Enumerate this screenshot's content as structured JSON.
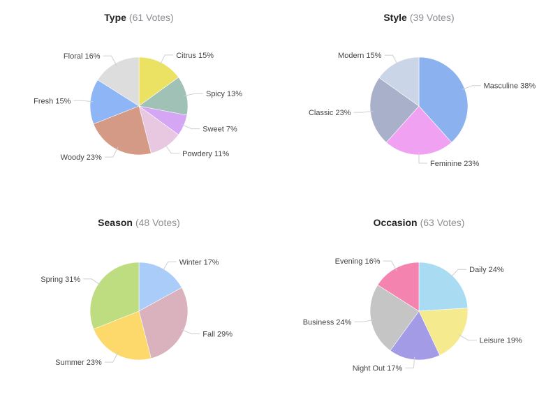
{
  "chart_data": [
    {
      "type": "pie",
      "title": "Type",
      "votes_label": "(61 Votes)",
      "slices": [
        {
          "label": "Citrus",
          "pct_label": "15%",
          "value": 15,
          "color": "#ebe263"
        },
        {
          "label": "Spicy",
          "pct_label": "13%",
          "value": 13,
          "color": "#9fc1b6"
        },
        {
          "label": "Sweet",
          "pct_label": "7%",
          "value": 7,
          "color": "#d4a6f4"
        },
        {
          "label": "Powdery",
          "pct_label": "11%",
          "value": 11,
          "color": "#e8c8e0"
        },
        {
          "label": "Woody",
          "pct_label": "23%",
          "value": 23,
          "color": "#d59a85"
        },
        {
          "label": "Fresh",
          "pct_label": "15%",
          "value": 15,
          "color": "#8eb6f6"
        },
        {
          "label": "Floral",
          "pct_label": "16%",
          "value": 16,
          "color": "#dddddd"
        }
      ]
    },
    {
      "type": "pie",
      "title": "Style",
      "votes_label": "(39 Votes)",
      "slices": [
        {
          "label": "Masculine",
          "pct_label": "38%",
          "value": 38,
          "color": "#8cb1ef"
        },
        {
          "label": "Feminine",
          "pct_label": "23%",
          "value": 23,
          "color": "#f1a1f1"
        },
        {
          "label": "Classic",
          "pct_label": "23%",
          "value": 23,
          "color": "#a9b0c9"
        },
        {
          "label": "Modern",
          "pct_label": "15%",
          "value": 15,
          "color": "#cbd5e8"
        }
      ]
    },
    {
      "type": "pie",
      "title": "Season",
      "votes_label": "(48 Votes)",
      "slices": [
        {
          "label": "Winter",
          "pct_label": "17%",
          "value": 17,
          "color": "#a9cdf8"
        },
        {
          "label": "Fall",
          "pct_label": "29%",
          "value": 29,
          "color": "#dab2be"
        },
        {
          "label": "Summer",
          "pct_label": "23%",
          "value": 23,
          "color": "#fdd86a"
        },
        {
          "label": "Spring",
          "pct_label": "31%",
          "value": 31,
          "color": "#bddd80"
        }
      ]
    },
    {
      "type": "pie",
      "title": "Occasion",
      "votes_label": "(63 Votes)",
      "slices": [
        {
          "label": "Daily",
          "pct_label": "24%",
          "value": 24,
          "color": "#a9dcf2"
        },
        {
          "label": "Leisure",
          "pct_label": "19%",
          "value": 19,
          "color": "#f6ea8f"
        },
        {
          "label": "Night Out",
          "pct_label": "17%",
          "value": 17,
          "color": "#a39be5"
        },
        {
          "label": "Business",
          "pct_label": "24%",
          "value": 24,
          "color": "#c5c5c5"
        },
        {
          "label": "Evening",
          "pct_label": "16%",
          "value": 16,
          "color": "#f483b0"
        }
      ]
    }
  ]
}
